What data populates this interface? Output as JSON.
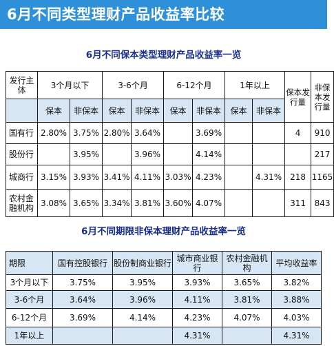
{
  "banner": {
    "title": "6月不同类型理财产品收益率比较"
  },
  "table1": {
    "title": "6月不同保本类型理财产品收益率一览",
    "header": {
      "issuer": "发行主体",
      "periods": [
        "3个月以下",
        "3-6个月",
        "6-12个月",
        "1年以上"
      ],
      "guaranteed_count": "保本发行量",
      "nonguaranteed_count": "非保本发行量",
      "guaranteed": "保本",
      "nonguaranteed": "非保本"
    },
    "rows": [
      {
        "issuer": "国有行",
        "cells": [
          "2.80%",
          "3.75%",
          "2.80%",
          "3.64%",
          "",
          "3.69%",
          "",
          "",
          "4",
          "910"
        ]
      },
      {
        "issuer": "股份行",
        "cells": [
          "",
          "3.95%",
          "",
          "3.96%",
          "",
          "4.14%",
          "",
          "",
          "",
          "217"
        ]
      },
      {
        "issuer": "城商行",
        "cells": [
          "3.15%",
          "3.93%",
          "3.41%",
          "4.11%",
          "3.03%",
          "4.23%",
          "",
          "4.31%",
          "218",
          "1165"
        ]
      },
      {
        "issuer": "农村金融机构",
        "cells": [
          "3.08%",
          "3.65%",
          "3.34%",
          "3.81%",
          "3.60%",
          "4.07%",
          "",
          "",
          "311",
          "843"
        ]
      }
    ]
  },
  "table2": {
    "title": "6月不同期限非保本理财产品收益率一览",
    "header": [
      "期限",
      "国有控股银行",
      "股份制商业银行",
      "城市商业银行",
      "农村金融机构",
      "平均收益率"
    ],
    "rows": [
      {
        "term": "3个月以下",
        "cells": [
          "3.75%",
          "3.95%",
          "3.93%",
          "3.65%",
          "3.82%"
        ]
      },
      {
        "term": "3-6个月",
        "cells": [
          "3.64%",
          "3.96%",
          "4.11%",
          "3.81%",
          "3.88%"
        ]
      },
      {
        "term": "6-12个月",
        "cells": [
          "3.69%",
          "4.14%",
          "4.23%",
          "4.07%",
          "4.03%"
        ]
      },
      {
        "term": "1年以上",
        "cells": [
          "",
          "",
          "4.31%",
          "",
          "4.31%"
        ]
      }
    ]
  }
}
